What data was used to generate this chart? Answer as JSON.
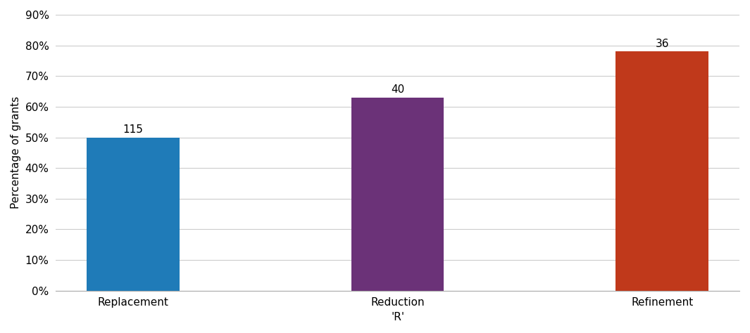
{
  "categories": [
    "Replacement",
    "Reduction",
    "Refinement"
  ],
  "values": [
    50,
    63,
    78
  ],
  "labels": [
    "115",
    "40",
    "36"
  ],
  "bar_colors": [
    "#1f7bb8",
    "#6b3278",
    "#c0391b"
  ],
  "ylabel": "Percentage of grants",
  "xlabel": "'R'",
  "ylim": [
    0,
    90
  ],
  "yticks": [
    0,
    10,
    20,
    30,
    40,
    50,
    60,
    70,
    80,
    90
  ],
  "ytick_labels": [
    "0%",
    "10%",
    "20%",
    "30%",
    "40%",
    "50%",
    "60%",
    "70%",
    "80%",
    "90%"
  ],
  "bar_width": 0.35,
  "annotation_fontsize": 11,
  "label_fontsize": 11,
  "tick_fontsize": 11,
  "background_color": "#ffffff",
  "grid_color": "#cccccc"
}
